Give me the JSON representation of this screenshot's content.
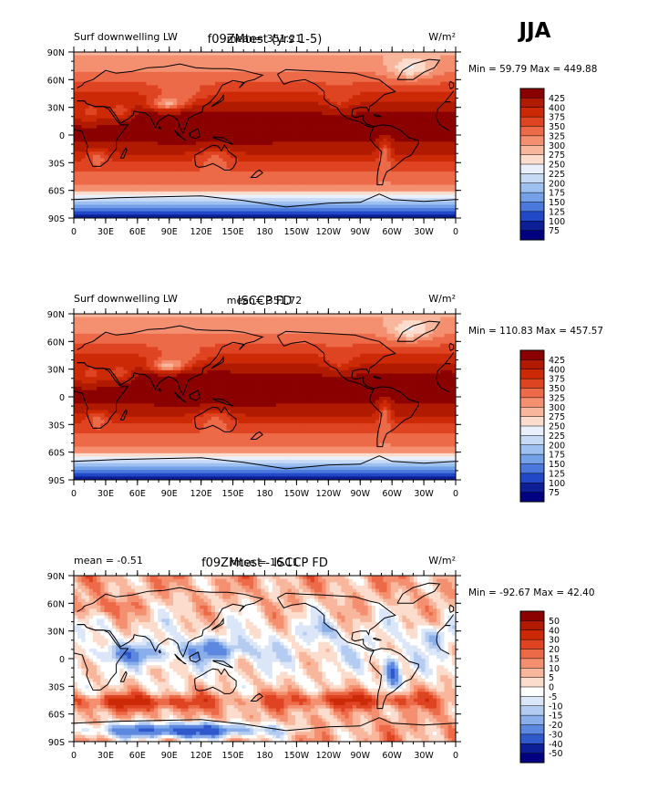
{
  "season": "JJA",
  "units": "W/m²",
  "chart_data": [
    {
      "type": "heatmap",
      "title": "f09ZMtest (yrs 1-5)",
      "left_label": "Surf downwelling LW",
      "center_label": "mean= 351.21",
      "stats": "Min =  59.79 Max = 449.88",
      "x_ticks": [
        "0",
        "30E",
        "60E",
        "90E",
        "120E",
        "150E",
        "180",
        "150W",
        "120W",
        "90W",
        "60W",
        "30W",
        "0"
      ],
      "y_ticks": [
        "90N",
        "60N",
        "30N",
        "0",
        "30S",
        "60S",
        "90S"
      ],
      "xlim": [
        0,
        360
      ],
      "ylim": [
        -90,
        90
      ],
      "colorbar_levels": [
        "425",
        "400",
        "375",
        "350",
        "325",
        "300",
        "275",
        "250",
        "225",
        "200",
        "175",
        "150",
        "125",
        "100",
        "75"
      ],
      "colorbar_colors": [
        "#8b0000",
        "#b01a00",
        "#cc2a06",
        "#df4422",
        "#ec6a48",
        "#f48f70",
        "#f8b69c",
        "#fcdccc",
        "#eaf0fb",
        "#c6daf6",
        "#9dc0f0",
        "#74a0e8",
        "#4a78dd",
        "#2148c6",
        "#0c1f96",
        "#000080"
      ],
      "field": "downwelling_lw"
    },
    {
      "type": "heatmap",
      "title": "ISCCP FD",
      "left_label": "Surf downwelling LW",
      "center_label": "mean= 351.72",
      "stats": "Min = 110.83 Max = 457.57",
      "x_ticks": [
        "0",
        "30E",
        "60E",
        "90E",
        "120E",
        "150E",
        "180",
        "150W",
        "120W",
        "90W",
        "60W",
        "30W",
        "0"
      ],
      "y_ticks": [
        "90N",
        "60N",
        "30N",
        "0",
        "30S",
        "60S",
        "90S"
      ],
      "xlim": [
        0,
        360
      ],
      "ylim": [
        -90,
        90
      ],
      "colorbar_levels": [
        "425",
        "400",
        "375",
        "350",
        "325",
        "300",
        "275",
        "250",
        "225",
        "200",
        "175",
        "150",
        "125",
        "100",
        "75"
      ],
      "colorbar_colors": [
        "#8b0000",
        "#b01a00",
        "#cc2a06",
        "#df4422",
        "#ec6a48",
        "#f48f70",
        "#f8b69c",
        "#fcdccc",
        "#eaf0fb",
        "#c6daf6",
        "#9dc0f0",
        "#74a0e8",
        "#4a78dd",
        "#2148c6",
        "#0c1f96",
        "#000080"
      ],
      "field": "downwelling_lw_obs"
    },
    {
      "type": "heatmap",
      "title": "f09ZMtest - ISCCP FD",
      "left_label": "mean =   -0.51",
      "center_label": "rmse =   16.11",
      "stats": "Min = -92.67 Max =  42.40",
      "x_ticks": [
        "0",
        "30E",
        "60E",
        "90E",
        "120E",
        "150E",
        "180",
        "150W",
        "120W",
        "90W",
        "60W",
        "30W",
        "0"
      ],
      "y_ticks": [
        "90N",
        "60N",
        "30N",
        "0",
        "30S",
        "60S",
        "90S"
      ],
      "xlim": [
        0,
        360
      ],
      "ylim": [
        -90,
        90
      ],
      "colorbar_levels": [
        "50",
        "40",
        "30",
        "20",
        "15",
        "10",
        "5",
        "0",
        "-5",
        "-10",
        "-15",
        "-20",
        "-30",
        "-40",
        "-50"
      ],
      "colorbar_colors": [
        "#8b0000",
        "#b01a00",
        "#cc2a06",
        "#df4422",
        "#ec6a48",
        "#f48f70",
        "#f8b69c",
        "#fcdccc",
        "#ffffff",
        "#dbe6f8",
        "#b4ccf2",
        "#8aaeea",
        "#5c88df",
        "#2f58cc",
        "#0c1f96",
        "#000080"
      ],
      "field": "difference"
    }
  ]
}
